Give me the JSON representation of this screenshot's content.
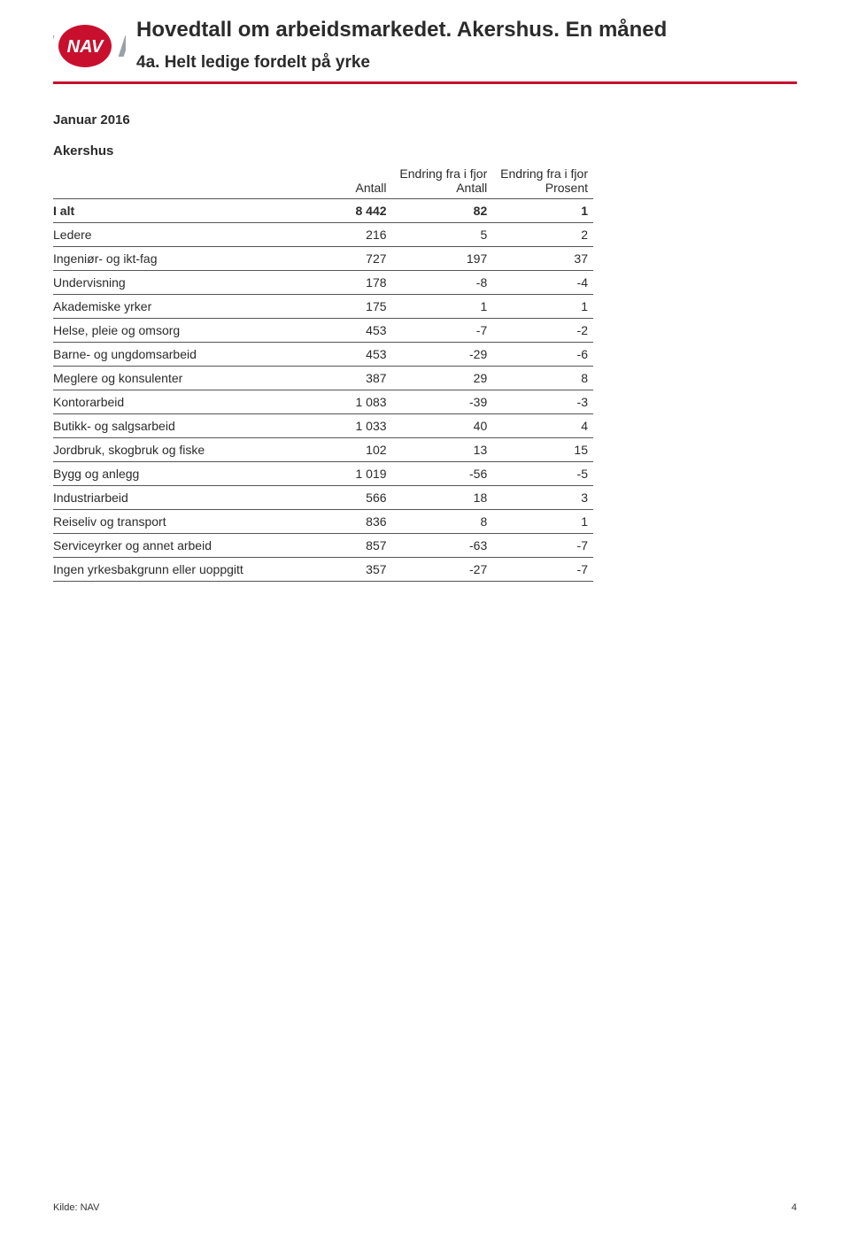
{
  "header": {
    "title_main": "Hovedtall om arbeidsmarkedet. Akershus. En måned",
    "title_sub": "4a. Helt ledige fordelt på yrke"
  },
  "logo": {
    "text": "NAV",
    "primary_color": "#c8102e",
    "secondary_color": "#ffffff"
  },
  "rule_color": "#c8102e",
  "meta": {
    "date_label": "Januar 2016",
    "region_label": "Akershus"
  },
  "table": {
    "columns": [
      {
        "label_line1": "",
        "label_line2": "",
        "align": "left"
      },
      {
        "label_line1": "",
        "label_line2": "Antall",
        "align": "right"
      },
      {
        "label_line1": "Endring fra i fjor",
        "label_line2": "Antall",
        "align": "right"
      },
      {
        "label_line1": "Endring fra i fjor",
        "label_line2": "Prosent",
        "align": "right"
      }
    ],
    "total_row": {
      "label": "I alt",
      "antall": "8 442",
      "endring_antall": "82",
      "endring_prosent": "1"
    },
    "rows": [
      {
        "label": "Ledere",
        "antall": "216",
        "endring_antall": "5",
        "endring_prosent": "2"
      },
      {
        "label": "Ingeniør- og ikt-fag",
        "antall": "727",
        "endring_antall": "197",
        "endring_prosent": "37"
      },
      {
        "label": "Undervisning",
        "antall": "178",
        "endring_antall": "-8",
        "endring_prosent": "-4"
      },
      {
        "label": "Akademiske yrker",
        "antall": "175",
        "endring_antall": "1",
        "endring_prosent": "1"
      },
      {
        "label": "Helse, pleie og omsorg",
        "antall": "453",
        "endring_antall": "-7",
        "endring_prosent": "-2"
      },
      {
        "label": "Barne- og ungdomsarbeid",
        "antall": "453",
        "endring_antall": "-29",
        "endring_prosent": "-6"
      },
      {
        "label": "Meglere og konsulenter",
        "antall": "387",
        "endring_antall": "29",
        "endring_prosent": "8"
      },
      {
        "label": "Kontorarbeid",
        "antall": "1 083",
        "endring_antall": "-39",
        "endring_prosent": "-3"
      },
      {
        "label": "Butikk- og salgsarbeid",
        "antall": "1 033",
        "endring_antall": "40",
        "endring_prosent": "4"
      },
      {
        "label": "Jordbruk, skogbruk og fiske",
        "antall": "102",
        "endring_antall": "13",
        "endring_prosent": "15"
      },
      {
        "label": "Bygg og anlegg",
        "antall": "1 019",
        "endring_antall": "-56",
        "endring_prosent": "-5"
      },
      {
        "label": "Industriarbeid",
        "antall": "566",
        "endring_antall": "18",
        "endring_prosent": "3"
      },
      {
        "label": "Reiseliv og transport",
        "antall": "836",
        "endring_antall": "8",
        "endring_prosent": "1"
      },
      {
        "label": "Serviceyrker og annet arbeid",
        "antall": "857",
        "endring_antall": "-63",
        "endring_prosent": "-7"
      },
      {
        "label": "Ingen yrkesbakgrunn eller uoppgitt",
        "antall": "357",
        "endring_antall": "-27",
        "endring_prosent": "-7"
      }
    ]
  },
  "footer": {
    "source": "Kilde: NAV",
    "page_number": "4"
  }
}
